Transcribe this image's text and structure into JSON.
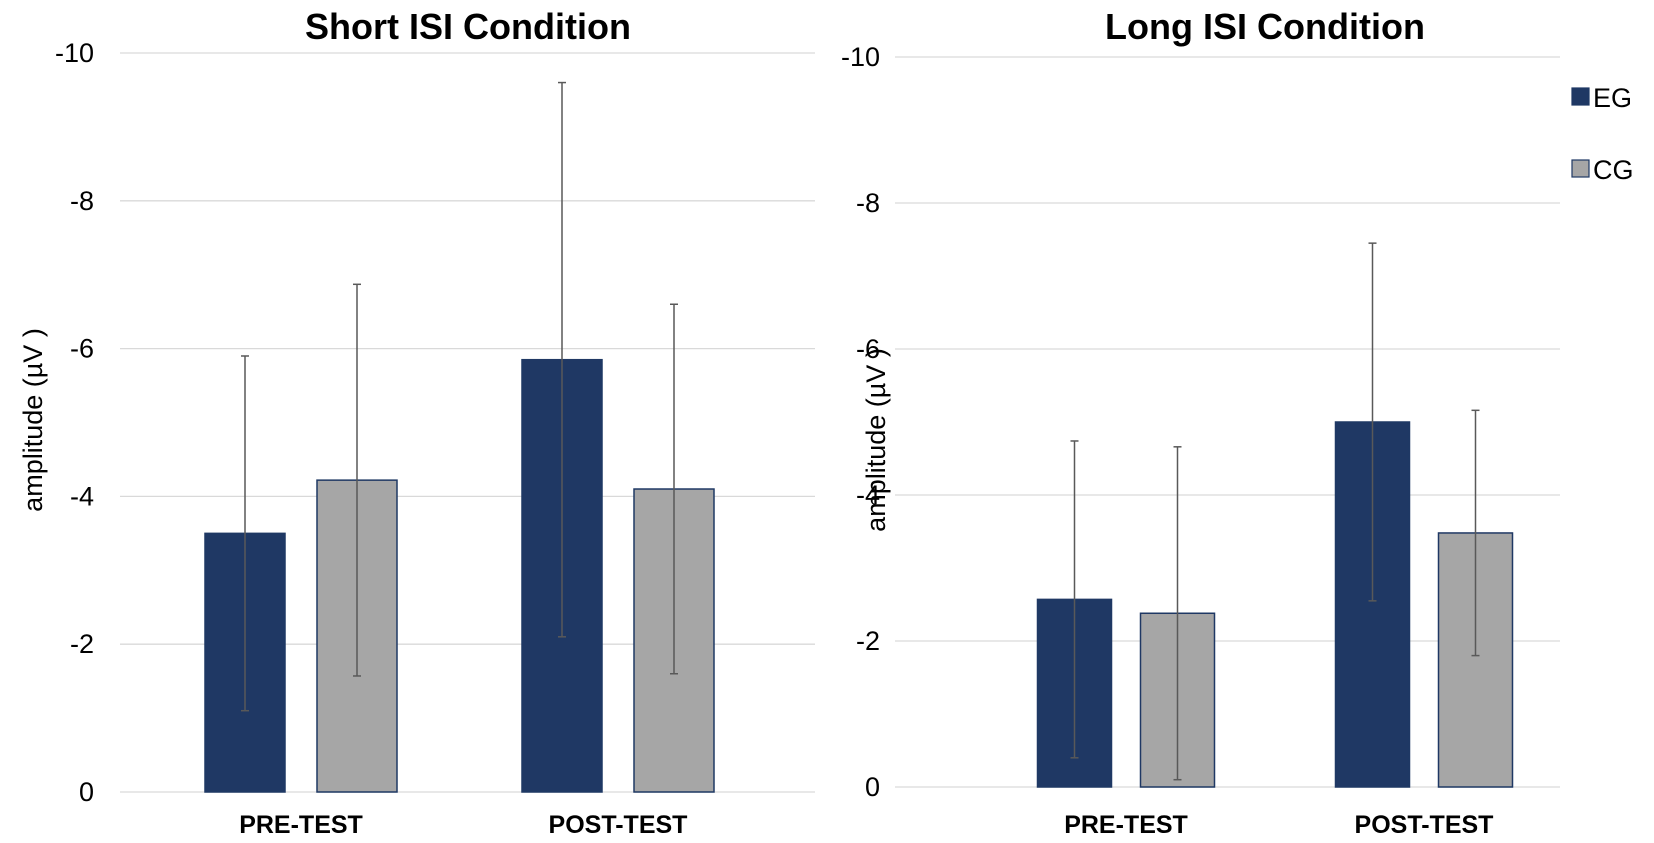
{
  "chart_data": [
    {
      "type": "bar",
      "title": "Short ISI Condition",
      "xlabel": "",
      "ylabel": "amplitude (µV )",
      "ylim": [
        0,
        -10
      ],
      "y_axis_inverted": true,
      "yticks": [
        0,
        -2,
        -4,
        -6,
        -8,
        -10
      ],
      "grid": true,
      "categories": [
        "PRE-TEST",
        "POST-TEST"
      ],
      "series": [
        {
          "name": "EG",
          "color": "#1f3864",
          "values": [
            -3.5,
            -5.85
          ],
          "error": [
            2.4,
            3.75
          ]
        },
        {
          "name": "CG",
          "color": "#a6a6a6",
          "values": [
            -4.22,
            -4.1
          ],
          "error": [
            2.65,
            2.5
          ]
        }
      ]
    },
    {
      "type": "bar",
      "title": "Long ISI Condition",
      "xlabel": "",
      "ylabel": "amplitude (µV )",
      "ylim": [
        0,
        -10
      ],
      "y_axis_inverted": true,
      "yticks": [
        0,
        -2,
        -4,
        -6,
        -8,
        -10
      ],
      "grid": true,
      "legend_position": "top-right",
      "categories": [
        "PRE-TEST",
        "POST-TEST"
      ],
      "series": [
        {
          "name": "EG",
          "color": "#1f3864",
          "values": [
            -2.57,
            -5.0
          ],
          "error": [
            2.17,
            2.45
          ]
        },
        {
          "name": "CG",
          "color": "#a6a6a6",
          "values": [
            -2.38,
            -3.48
          ],
          "error": [
            2.28,
            1.68
          ]
        }
      ]
    }
  ],
  "legend": [
    {
      "label": "EG",
      "color": "#1f3864"
    },
    {
      "label": "CG",
      "color": "#a6a6a6"
    }
  ]
}
